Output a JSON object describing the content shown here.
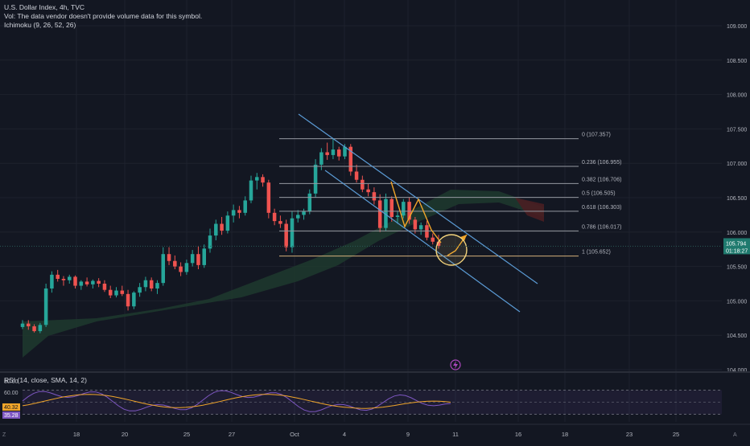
{
  "header": {
    "title": "U.S. Dollar Index, 4h, TVC",
    "volume_note": "Vol: The data vendor doesn't provide volume data for this symbol.",
    "indicator": "Ichimoku (9, 26, 52, 26)"
  },
  "price_axis": {
    "ticks": [
      "109.000",
      "108.500",
      "108.000",
      "107.500",
      "107.000",
      "106.500",
      "106.000",
      "105.500",
      "105.000",
      "104.500",
      "104.000"
    ],
    "last_price": "105.794",
    "countdown": "01:18:27"
  },
  "time_axis": {
    "ticks": [
      "18",
      "20",
      "25",
      "27",
      "Oct",
      "4",
      "9",
      "11",
      "16",
      "18",
      "23",
      "25"
    ]
  },
  "fibonacci": {
    "levels": [
      {
        "label": "0 (107.357)",
        "price": 107.357,
        "color": "#9598a1"
      },
      {
        "label": "0.236 (106.955)",
        "price": 106.955,
        "color": "#9598a1"
      },
      {
        "label": "0.382 (106.706)",
        "price": 106.706,
        "color": "#9598a1"
      },
      {
        "label": "0.5 (106.505)",
        "price": 106.505,
        "color": "#9598a1"
      },
      {
        "label": "0.618 (106.303)",
        "price": 106.303,
        "color": "#9598a1"
      },
      {
        "label": "0.786 (106.017)",
        "price": 106.017,
        "color": "#9598a1"
      },
      {
        "label": "1 (105.652)",
        "price": 105.652,
        "color": "#d4b07a"
      }
    ]
  },
  "rsi": {
    "label": "RSI (14, close, SMA, 14, 2)",
    "ticks": [
      "80.00",
      "60.00"
    ],
    "value1": "40.32",
    "value2": "35.28"
  },
  "colors": {
    "up": "#26a69a",
    "down": "#ef5350",
    "channel": "#5b9bd5",
    "cloud_bull": "#1f3a2e",
    "cloud_bear": "#4a1e22",
    "rsi_line": "#7e57c2",
    "rsi_ma": "#f0a52a",
    "fib_circle": "#f4d47c"
  },
  "chart_data": {
    "type": "candlestick",
    "series": [
      {
        "name": "U.S. Dollar Index, 4h, TVC",
        "ohlc": [
          [
            104.62,
            104.72,
            104.59,
            104.67
          ],
          [
            104.67,
            104.72,
            104.58,
            104.63
          ],
          [
            104.63,
            104.66,
            104.54,
            104.56
          ],
          [
            104.56,
            104.68,
            104.53,
            104.65
          ],
          [
            104.65,
            105.25,
            104.62,
            105.18
          ],
          [
            105.18,
            105.43,
            105.12,
            105.38
          ],
          [
            105.38,
            105.45,
            105.28,
            105.32
          ],
          [
            105.32,
            105.36,
            105.22,
            105.3
          ],
          [
            105.3,
            105.38,
            105.25,
            105.35
          ],
          [
            105.35,
            105.37,
            105.18,
            105.22
          ],
          [
            105.22,
            105.3,
            105.16,
            105.28
          ],
          [
            105.28,
            105.34,
            105.21,
            105.24
          ],
          [
            105.24,
            105.31,
            105.18,
            105.29
          ],
          [
            105.29,
            105.33,
            105.2,
            105.25
          ],
          [
            105.25,
            105.3,
            105.13,
            105.16
          ],
          [
            105.16,
            105.22,
            105.04,
            105.08
          ],
          [
            105.08,
            105.2,
            105.05,
            105.15
          ],
          [
            105.15,
            105.22,
            105.07,
            105.1
          ],
          [
            105.1,
            105.16,
            104.86,
            104.92
          ],
          [
            104.92,
            105.14,
            104.88,
            105.12
          ],
          [
            105.12,
            105.26,
            105.06,
            105.2
          ],
          [
            105.2,
            105.35,
            105.14,
            105.3
          ],
          [
            105.3,
            105.34,
            105.14,
            105.18
          ],
          [
            105.18,
            105.3,
            105.1,
            105.26
          ],
          [
            105.26,
            105.78,
            105.22,
            105.68
          ],
          [
            105.68,
            105.78,
            105.52,
            105.58
          ],
          [
            105.58,
            105.66,
            105.46,
            105.5
          ],
          [
            105.5,
            105.56,
            105.36,
            105.42
          ],
          [
            105.42,
            105.6,
            105.38,
            105.55
          ],
          [
            105.55,
            105.74,
            105.5,
            105.68
          ],
          [
            105.68,
            105.8,
            105.46,
            105.52
          ],
          [
            105.52,
            105.82,
            105.48,
            105.76
          ],
          [
            105.76,
            106.05,
            105.7,
            105.95
          ],
          [
            105.95,
            106.18,
            105.88,
            106.12
          ],
          [
            106.12,
            106.22,
            105.96,
            106.02
          ],
          [
            106.02,
            106.3,
            105.98,
            106.24
          ],
          [
            106.24,
            106.4,
            106.14,
            106.32
          ],
          [
            106.32,
            106.38,
            106.2,
            106.28
          ],
          [
            106.28,
            106.52,
            106.24,
            106.46
          ],
          [
            106.46,
            106.82,
            106.42,
            106.75
          ],
          [
            106.75,
            106.86,
            106.62,
            106.8
          ],
          [
            106.8,
            106.84,
            106.66,
            106.72
          ],
          [
            106.72,
            106.76,
            106.2,
            106.28
          ],
          [
            106.28,
            106.34,
            106.1,
            106.16
          ],
          [
            106.16,
            106.24,
            106.06,
            106.12
          ],
          [
            106.12,
            106.18,
            105.72,
            105.78
          ],
          [
            105.78,
            106.3,
            105.7,
            106.2
          ],
          [
            106.2,
            106.32,
            106.14,
            106.25
          ],
          [
            106.25,
            106.34,
            106.18,
            106.3
          ],
          [
            106.3,
            106.62,
            106.26,
            106.56
          ],
          [
            106.56,
            107.06,
            106.5,
            106.98
          ],
          [
            106.98,
            107.22,
            106.9,
            107.16
          ],
          [
            107.16,
            107.3,
            107.05,
            107.12
          ],
          [
            107.12,
            107.36,
            107.06,
            107.2
          ],
          [
            107.2,
            107.24,
            107.04,
            107.1
          ],
          [
            107.1,
            107.28,
            107.06,
            107.24
          ],
          [
            107.24,
            107.28,
            106.82,
            106.88
          ],
          [
            106.88,
            106.98,
            106.72,
            106.76
          ],
          [
            106.76,
            106.82,
            106.58,
            106.62
          ],
          [
            106.62,
            106.7,
            106.52,
            106.58
          ],
          [
            106.58,
            106.65,
            106.4,
            106.46
          ],
          [
            106.46,
            106.55,
            106.0,
            106.06
          ],
          [
            106.06,
            106.56,
            106.02,
            106.48
          ],
          [
            106.48,
            106.52,
            106.15,
            106.22
          ],
          [
            106.22,
            106.3,
            106.12,
            106.24
          ],
          [
            106.24,
            106.48,
            106.2,
            106.44
          ],
          [
            106.44,
            106.5,
            106.12,
            106.18
          ],
          [
            106.18,
            106.22,
            105.98,
            106.04
          ],
          [
            106.04,
            106.14,
            105.96,
            106.1
          ],
          [
            106.1,
            106.16,
            105.88,
            105.92
          ],
          [
            105.92,
            105.98,
            105.82,
            105.86
          ],
          [
            105.86,
            105.96,
            105.76,
            105.8
          ]
        ]
      }
    ],
    "y_range": [
      104.0,
      109.0
    ],
    "x_ticks": [
      "18",
      "20",
      "25",
      "27",
      "Oct",
      "4",
      "9",
      "11",
      "16",
      "18",
      "23",
      "25"
    ],
    "rsi_ticks": [
      "80.00",
      "60.00"
    ]
  }
}
